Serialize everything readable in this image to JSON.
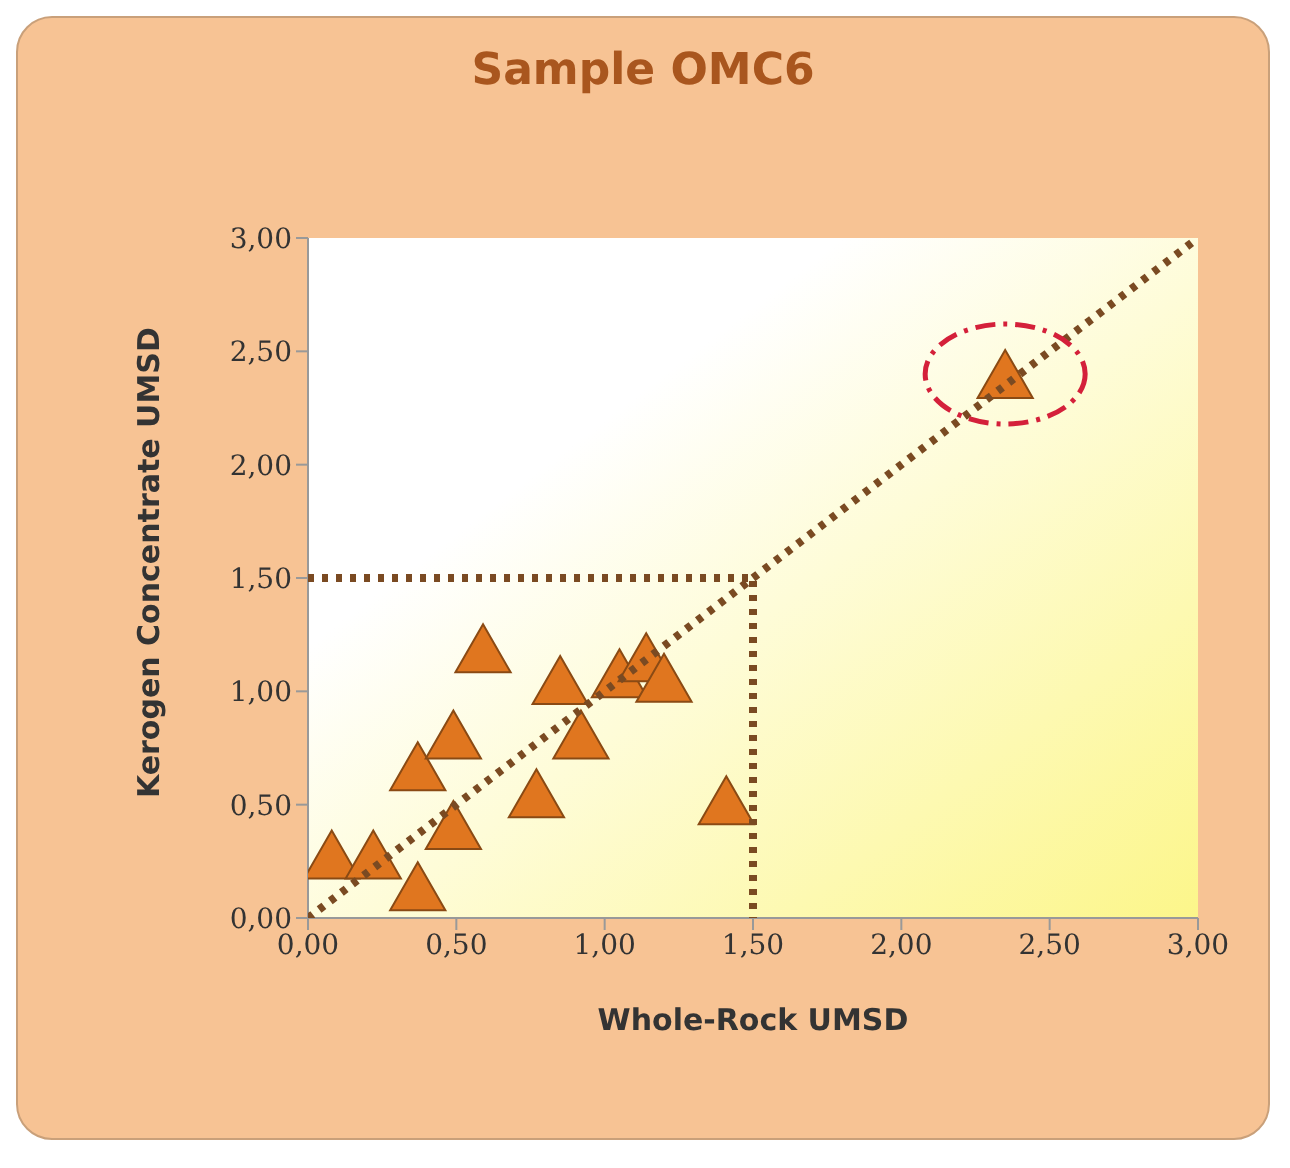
{
  "chart_data": {
    "type": "scatter",
    "title": "Sample OMC6",
    "xlabel": "Whole-Rock  UMSD",
    "ylabel": "Kerogen Concentrate UMSD",
    "series": [
      {
        "type": "scatter",
        "color": "#e0761f",
        "marker": "triangle",
        "x": [
          0.08,
          0.22,
          0.37,
          0.37,
          0.49,
          0.49,
          0.59,
          0.77,
          0.85,
          0.92,
          1.05,
          1.14,
          1.2,
          1.41,
          2.35
        ],
        "values": [
          0.28,
          0.28,
          0.14,
          0.67,
          0.81,
          0.41,
          1.19,
          0.55,
          1.05,
          0.81,
          1.08,
          1.15,
          1.06,
          0.52,
          2.4
        ]
      },
      {
        "type": "line",
        "color": "#7a4a22",
        "line_style": "dotted",
        "x": [
          0,
          3
        ],
        "values": [
          0,
          3
        ]
      },
      {
        "type": "line",
        "color": "#7a4a22",
        "line_style": "dotted",
        "x": [
          0,
          1.5,
          1.5
        ],
        "values": [
          1.5,
          1.5,
          0
        ]
      }
    ],
    "xlim": [
      0,
      3
    ],
    "ylim": [
      0,
      3
    ],
    "xticks": [
      {
        "value": 0,
        "label": "0,00"
      },
      {
        "value": 0.5,
        "label": "0,50"
      },
      {
        "value": 1,
        "label": "1,00"
      },
      {
        "value": 1.5,
        "label": "1,50"
      },
      {
        "value": 2,
        "label": "2,00"
      },
      {
        "value": 2.5,
        "label": "2,50"
      },
      {
        "value": 3,
        "label": "3,00"
      }
    ],
    "yticks": [
      {
        "value": 0,
        "label": "0,00"
      },
      {
        "value": 0.5,
        "label": "0,50"
      },
      {
        "value": 1,
        "label": "1,00"
      },
      {
        "value": 1.5,
        "label": "1,50"
      },
      {
        "value": 2,
        "label": "2,00"
      },
      {
        "value": 2.5,
        "label": "2,50"
      },
      {
        "value": 3,
        "label": "3,00"
      }
    ],
    "grid": false,
    "legend": false
  }
}
